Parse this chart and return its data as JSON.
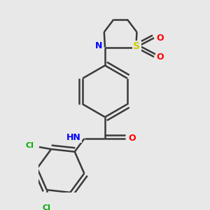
{
  "bg_color": "#e8e8e8",
  "bond_color": "#3a3a3a",
  "bond_width": 1.8,
  "atom_colors": {
    "N": "#0000ff",
    "O": "#ff0000",
    "S": "#cccc00",
    "Cl": "#00aa00",
    "C": "#3a3a3a",
    "H": "#3a3a3a"
  },
  "font_size": 8
}
